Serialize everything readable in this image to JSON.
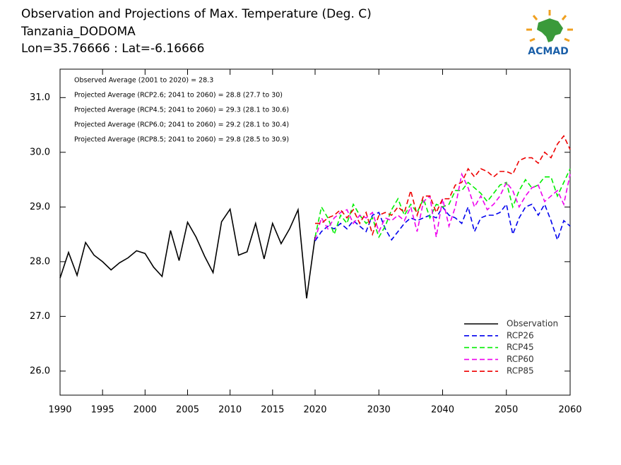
{
  "chart_data": {
    "type": "line",
    "title": "Observation and Projections of Max. Temperature (Deg. C)",
    "subtitle": "Tanzania_DODOMA",
    "location": "Lon=35.76666 : Lat=-6.16666",
    "logo_text": "ACMAD",
    "annotations": [
      "Observed Average (2001 to 2020) = 28.3",
      "Projected Average (RCP2.6; 2041 to 2060) = 28.8 (27.7 to 30)",
      "Projected Average (RCP4.5; 2041 to 2060) = 29.3 (28.1 to 30.6)",
      "Projected Average (RCP6.0; 2041 to 2060) = 29.2 (28.1 to 30.4)",
      "Projected Average (RCP8.5; 2041 to 2060) = 29.8 (28.5 to 30.9)"
    ],
    "x_segments": [
      [
        1990,
        2020
      ],
      [
        2020,
        2060
      ]
    ],
    "xticks": [
      1990,
      1995,
      2000,
      2005,
      2010,
      2015,
      2020,
      2030,
      2040,
      2050,
      2060
    ],
    "ylim": [
      25.56,
      31.52
    ],
    "yticks": [
      {
        "value": 26,
        "label": "26.0"
      },
      {
        "value": 27,
        "label": "27.0"
      },
      {
        "value": 28,
        "label": "28.0"
      },
      {
        "value": 29,
        "label": "29.0"
      },
      {
        "value": 30,
        "label": "30.0"
      },
      {
        "value": 31,
        "label": "31.0"
      }
    ],
    "legend": "lower right",
    "series": [
      {
        "name": "Observation",
        "color": "#000000",
        "dashed": false,
        "x": [
          1990,
          1991,
          1992,
          1993,
          1994,
          1995,
          1996,
          1997,
          1998,
          1999,
          2000,
          2001,
          2002,
          2003,
          2004,
          2005,
          2006,
          2007,
          2008,
          2009,
          2010,
          2011,
          2012,
          2013,
          2014,
          2015,
          2016,
          2017,
          2018,
          2019,
          2020
        ],
        "values": [
          27.7,
          28.17,
          27.75,
          28.35,
          28.12,
          28.0,
          27.85,
          27.98,
          28.07,
          28.2,
          28.15,
          27.9,
          27.73,
          28.57,
          28.02,
          28.72,
          28.45,
          28.1,
          27.8,
          28.73,
          28.96,
          28.12,
          28.18,
          28.7,
          28.05,
          28.7,
          28.33,
          28.6,
          28.95,
          27.33,
          28.45
        ]
      },
      {
        "name": "RCP26",
        "color": "#0000ee",
        "dashed": true,
        "x": [
          2020,
          2021,
          2022,
          2023,
          2024,
          2025,
          2026,
          2027,
          2028,
          2029,
          2030,
          2031,
          2032,
          2033,
          2034,
          2035,
          2036,
          2037,
          2038,
          2039,
          2040,
          2041,
          2042,
          2043,
          2044,
          2045,
          2046,
          2047,
          2048,
          2049,
          2050,
          2051,
          2052,
          2053,
          2054,
          2055,
          2056,
          2057,
          2058,
          2059,
          2060
        ],
        "values": [
          28.38,
          28.55,
          28.65,
          28.6,
          28.7,
          28.6,
          28.75,
          28.65,
          28.55,
          28.85,
          28.9,
          28.6,
          28.4,
          28.55,
          28.7,
          28.8,
          28.75,
          28.8,
          28.85,
          28.8,
          29.0,
          28.85,
          28.8,
          28.7,
          29.0,
          28.55,
          28.8,
          28.85,
          28.85,
          28.9,
          29.05,
          28.5,
          28.8,
          29.0,
          29.05,
          28.85,
          29.05,
          28.75,
          28.4,
          28.75,
          28.65
        ]
      },
      {
        "name": "RCP45",
        "color": "#00ee00",
        "dashed": true,
        "x": [
          2020,
          2021,
          2022,
          2023,
          2024,
          2025,
          2026,
          2027,
          2028,
          2029,
          2030,
          2031,
          2032,
          2033,
          2034,
          2035,
          2036,
          2037,
          2038,
          2039,
          2040,
          2041,
          2042,
          2043,
          2044,
          2045,
          2046,
          2047,
          2048,
          2049,
          2050,
          2051,
          2052,
          2053,
          2054,
          2055,
          2056,
          2057,
          2058,
          2059,
          2060
        ],
        "values": [
          28.45,
          29.0,
          28.8,
          28.5,
          28.85,
          28.7,
          29.05,
          28.85,
          28.7,
          28.8,
          28.45,
          28.65,
          28.95,
          29.15,
          28.85,
          29.05,
          28.9,
          29.15,
          28.8,
          29.05,
          29.0,
          29.05,
          29.3,
          29.3,
          29.45,
          29.35,
          29.25,
          29.1,
          29.25,
          29.4,
          29.45,
          29.0,
          29.3,
          29.5,
          29.35,
          29.4,
          29.55,
          29.55,
          29.2,
          29.45,
          29.7
        ]
      },
      {
        "name": "RCP60",
        "color": "#ee00ee",
        "dashed": true,
        "x": [
          2020,
          2021,
          2022,
          2023,
          2024,
          2025,
          2026,
          2027,
          2028,
          2029,
          2030,
          2031,
          2032,
          2033,
          2034,
          2035,
          2036,
          2037,
          2038,
          2039,
          2040,
          2041,
          2042,
          2043,
          2044,
          2045,
          2046,
          2047,
          2048,
          2049,
          2050,
          2051,
          2052,
          2053,
          2054,
          2055,
          2056,
          2057,
          2058,
          2059,
          2060
        ],
        "values": [
          28.4,
          28.8,
          28.6,
          28.8,
          28.9,
          28.95,
          28.7,
          28.85,
          28.8,
          28.9,
          28.55,
          28.8,
          28.75,
          28.85,
          28.75,
          29.0,
          28.55,
          29.1,
          29.2,
          28.45,
          29.15,
          28.65,
          29.0,
          29.6,
          29.35,
          29.0,
          29.2,
          28.95,
          29.05,
          29.2,
          29.45,
          29.3,
          29.0,
          29.2,
          29.35,
          29.4,
          29.1,
          29.2,
          29.3,
          29.05,
          29.6
        ]
      },
      {
        "name": "RCP85",
        "color": "#ee0000",
        "dashed": true,
        "x": [
          2020,
          2021,
          2022,
          2023,
          2024,
          2025,
          2026,
          2027,
          2028,
          2029,
          2030,
          2031,
          2032,
          2033,
          2034,
          2035,
          2036,
          2037,
          2038,
          2039,
          2040,
          2041,
          2042,
          2043,
          2044,
          2045,
          2046,
          2047,
          2048,
          2049,
          2050,
          2051,
          2052,
          2053,
          2054,
          2055,
          2056,
          2057,
          2058,
          2059,
          2060
        ],
        "values": [
          28.7,
          28.7,
          28.8,
          28.85,
          28.95,
          28.8,
          28.95,
          28.7,
          28.9,
          28.5,
          28.85,
          28.9,
          28.85,
          29.0,
          28.9,
          29.3,
          28.85,
          29.2,
          29.2,
          28.9,
          29.15,
          29.15,
          29.4,
          29.45,
          29.7,
          29.55,
          29.7,
          29.65,
          29.55,
          29.65,
          29.65,
          29.6,
          29.85,
          29.9,
          29.9,
          29.8,
          30.0,
          29.9,
          30.15,
          30.3,
          30.05
        ]
      }
    ]
  }
}
